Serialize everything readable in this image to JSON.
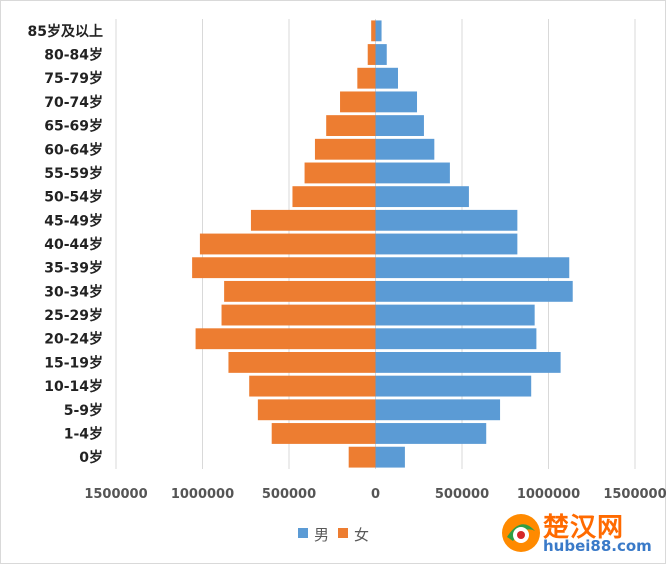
{
  "chart_data": {
    "type": "bar",
    "orientation": "horizontal",
    "layout": "population-pyramid",
    "categories": [
      "0岁",
      "1-4岁",
      "5-9岁",
      "10-14岁",
      "15-19岁",
      "20-24岁",
      "25-29岁",
      "30-34岁",
      "35-39岁",
      "40-44岁",
      "45-49岁",
      "50-54岁",
      "55-59岁",
      "60-64岁",
      "65-69岁",
      "70-74岁",
      "75-79岁",
      "80-84岁",
      "85岁及以上"
    ],
    "series": [
      {
        "name": "男",
        "color": "#5b9bd5",
        "values": [
          170000,
          640000,
          720000,
          900000,
          1070000,
          930000,
          920000,
          1140000,
          1120000,
          820000,
          820000,
          540000,
          430000,
          340000,
          280000,
          240000,
          130000,
          65000,
          35000
        ]
      },
      {
        "name": "女",
        "color": "#ed7d31",
        "values": [
          -155000,
          -600000,
          -680000,
          -730000,
          -850000,
          -1040000,
          -890000,
          -875000,
          -1060000,
          -1015000,
          -720000,
          -480000,
          -410000,
          -350000,
          -285000,
          -205000,
          -105000,
          -45000,
          -25000
        ]
      }
    ],
    "xlim": [
      -1500000,
      1500000
    ],
    "xticks": [
      -1500000,
      -1000000,
      -500000,
      0,
      500000,
      1000000,
      1500000
    ],
    "xtick_labels": [
      "1500000",
      "1000000",
      "500000",
      "0",
      "500000",
      "1000000",
      "1500000"
    ],
    "grid": "vertical",
    "legend_position": "bottom"
  },
  "legend": {
    "male": "男",
    "female": "女"
  },
  "watermark": {
    "name": "楚汉网",
    "url": "hubei88.com"
  }
}
